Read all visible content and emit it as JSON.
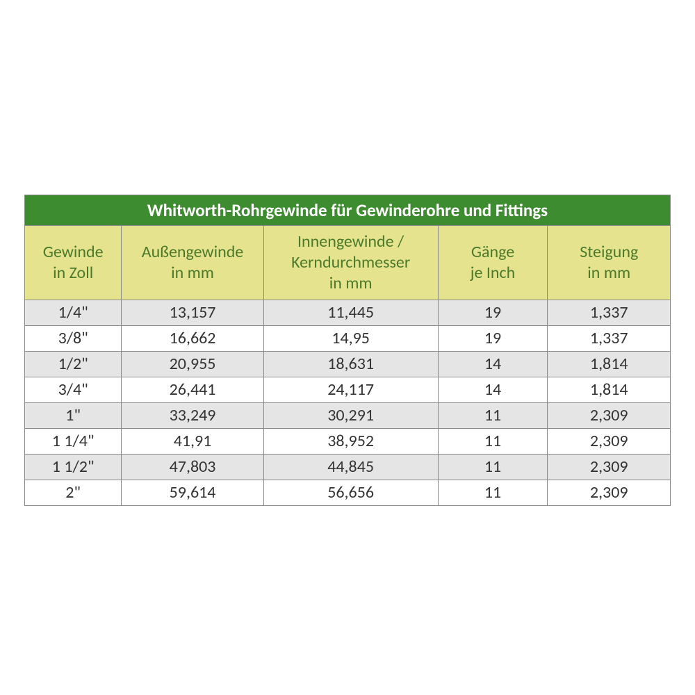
{
  "table": {
    "type": "table",
    "title": "Whitworth-Rohrgewinde für Gewinderohre und Fittings",
    "title_bg": "#3d8c2f",
    "title_color": "#ffffff",
    "title_fontsize": 25,
    "header_bg": "#e6e38f",
    "header_color": "#4a7a2a",
    "header_fontsize": 24,
    "cell_fontsize": 24,
    "border_color": "#8a8a8a",
    "row_bg_odd": "#e5e5e5",
    "row_bg_even": "#ffffff",
    "col_widths_pct": [
      15,
      22,
      27,
      17,
      19
    ],
    "columns": [
      "Gewinde\nin Zoll",
      "Außengewinde\nin mm",
      "Innengewinde /\nKerndurchmesser\nin mm",
      "Gänge\nje Inch",
      "Steigung\nin mm"
    ],
    "rows": [
      [
        "1/4\"",
        "13,157",
        "11,445",
        "19",
        "1,337"
      ],
      [
        "3/8\"",
        "16,662",
        "14,95",
        "19",
        "1,337"
      ],
      [
        "1/2\"",
        "20,955",
        "18,631",
        "14",
        "1,814"
      ],
      [
        "3/4\"",
        "26,441",
        "24,117",
        "14",
        "1,814"
      ],
      [
        "1\"",
        "33,249",
        "30,291",
        "11",
        "2,309"
      ],
      [
        "1 1/4\"",
        "41,91",
        "38,952",
        "11",
        "2,309"
      ],
      [
        "1 1/2\"",
        "47,803",
        "44,845",
        "11",
        "2,309"
      ],
      [
        "2\"",
        "59,614",
        "56,656",
        "11",
        "2,309"
      ]
    ]
  }
}
